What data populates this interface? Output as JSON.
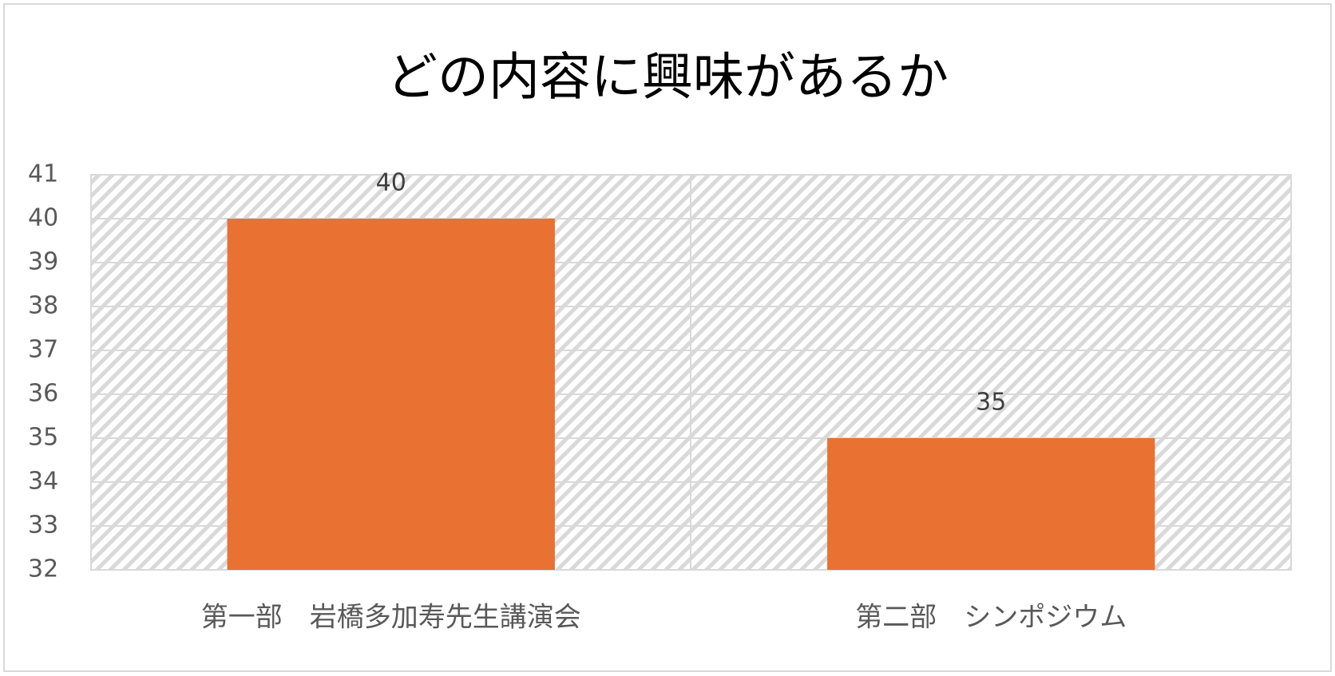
{
  "chart_data": {
    "type": "bar",
    "title": "どの内容に興味があるか",
    "categories": [
      "第一部　岩橋多加寿先生講演会",
      "第二部　シンポジウム"
    ],
    "values": [
      40,
      35
    ],
    "color": "#e97132",
    "ylim": [
      32,
      41
    ],
    "yticks": [
      32,
      33,
      34,
      35,
      36,
      37,
      38,
      39,
      40,
      41
    ],
    "grid": true
  }
}
